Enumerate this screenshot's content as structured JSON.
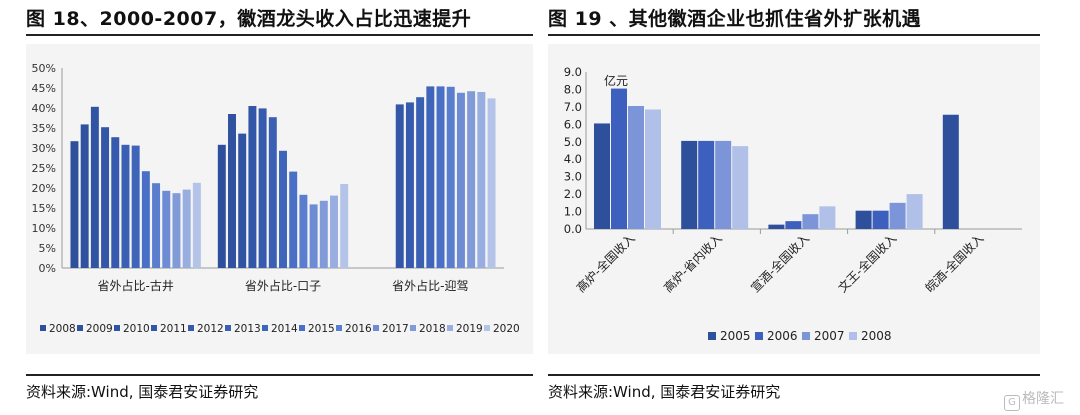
{
  "left": {
    "title": "图 18、2000-2007，徽酒龙头收入占比迅速提升",
    "source": "资料来源:Wind, 国泰君安证券研究"
  },
  "right": {
    "title": "图 19 、其他徽酒企业也抓住省外扩张机遇",
    "source": "资料来源:Wind, 国泰君安证券研究"
  },
  "watermark": "格隆汇",
  "watermark_icon": "G",
  "colors": {
    "dark": "#2e4f9c",
    "mid": "#4a6fc6",
    "light": "#8ea6dc",
    "pale": "#b3c2e8"
  },
  "chart_data": [
    {
      "type": "bar",
      "ylim": [
        0,
        50
      ],
      "yticks": [
        0,
        5,
        10,
        15,
        20,
        25,
        30,
        35,
        40,
        45,
        50
      ],
      "ytick_labels": [
        "0%",
        "5%",
        "10%",
        "15%",
        "20%",
        "25%",
        "30%",
        "35%",
        "40%",
        "45%",
        "50%"
      ],
      "categories": [
        "省外占比-古井",
        "省外占比-口子",
        "省外占比-迎驾"
      ],
      "legend_position": "bottom",
      "series": [
        {
          "name": "2008",
          "color": "#2e4f9c",
          "values": [
            31.7,
            30.8,
            null
          ]
        },
        {
          "name": "2009",
          "color": "#2f519f",
          "values": [
            35.9,
            38.5,
            null
          ]
        },
        {
          "name": "2010",
          "color": "#3153a3",
          "values": [
            40.3,
            33.6,
            null
          ]
        },
        {
          "name": "2011",
          "color": "#3356a8",
          "values": [
            35.2,
            40.5,
            40.9
          ]
        },
        {
          "name": "2012",
          "color": "#365aad",
          "values": [
            32.7,
            39.9,
            41.4
          ]
        },
        {
          "name": "2013",
          "color": "#3a5fb3",
          "values": [
            30.8,
            37.7,
            42.7
          ]
        },
        {
          "name": "2014",
          "color": "#3f65ba",
          "values": [
            30.6,
            29.3,
            45.4
          ]
        },
        {
          "name": "2015",
          "color": "#4a6fc6",
          "values": [
            24.2,
            24.1,
            45.4
          ]
        },
        {
          "name": "2016",
          "color": "#5b7dcd",
          "values": [
            21.2,
            18.3,
            45.3
          ]
        },
        {
          "name": "2017",
          "color": "#6e8cd3",
          "values": [
            19.3,
            15.9,
            43.8
          ]
        },
        {
          "name": "2018",
          "color": "#819bd9",
          "values": [
            18.7,
            16.8,
            44.2
          ]
        },
        {
          "name": "2019",
          "color": "#98aee0",
          "values": [
            19.6,
            18.1,
            44.0
          ]
        },
        {
          "name": "2020",
          "color": "#b4c3e8",
          "values": [
            21.3,
            21.0,
            42.4
          ]
        }
      ]
    },
    {
      "type": "bar",
      "ylim": [
        0,
        9
      ],
      "yticks": [
        0,
        1,
        2,
        3,
        4,
        5,
        6,
        7,
        8,
        9
      ],
      "ytick_labels": [
        "0.0",
        "1.0",
        "2.0",
        "3.0",
        "4.0",
        "5.0",
        "6.0",
        "7.0",
        "8.0",
        "9.0"
      ],
      "unit_label": "亿元",
      "categories": [
        "高炉-全国收入",
        "高炉-省内收入",
        "宣酒-全国收入",
        "文王-全国收入",
        "皖酒-全国收入"
      ],
      "legend_position": "bottom",
      "series": [
        {
          "name": "2005",
          "color": "#2e4f9c",
          "values": [
            6.05,
            5.05,
            0.25,
            1.05,
            6.55
          ]
        },
        {
          "name": "2006",
          "color": "#3d5fbd",
          "values": [
            8.05,
            5.05,
            0.45,
            1.05,
            null
          ]
        },
        {
          "name": "2007",
          "color": "#7b95d8",
          "values": [
            7.05,
            5.05,
            0.85,
            1.5,
            null
          ]
        },
        {
          "name": "2008",
          "color": "#b0c0e8",
          "values": [
            6.85,
            4.75,
            1.3,
            2.0,
            null
          ]
        }
      ]
    }
  ]
}
